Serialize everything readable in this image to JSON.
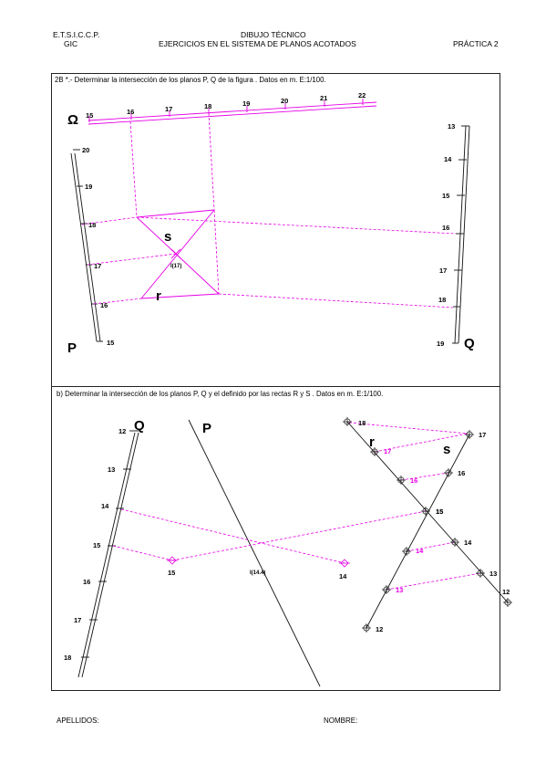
{
  "header": {
    "school": "E.T.S.I.C.C.P.",
    "group": "GIC",
    "subject": "DIBUJO TÉCNICO",
    "topic": "EJERCICIOS EN EL SISTEMA DE PLANOS ACOTADOS",
    "practice": "PRÁCTICA 2"
  },
  "exercise_a": {
    "statement": "2B *.- Determinar la intersección de los planos P, Q  de la figura . Datos en m. E:1/100.",
    "omega_label": "Ω",
    "omega_ticks": [
      "15",
      "16",
      "17",
      "18",
      "19",
      "20",
      "21",
      "22"
    ],
    "plane_p_label": "P",
    "plane_p_ticks": [
      "20",
      "19",
      "18",
      "17",
      "16",
      "15"
    ],
    "plane_q_label": "Q",
    "plane_q_ticks": [
      "13",
      "14",
      "15",
      "16",
      "17",
      "18",
      "19"
    ],
    "line_s": "s",
    "line_r": "r",
    "point_label": "I",
    "point_sub": "(17)"
  },
  "exercise_b": {
    "statement": "b)    Determinar la intersección de los planos P, Q y el definido por las rectas R y S . Datos en m. E:1/100.",
    "plane_q_label": "Q",
    "plane_q_ticks": [
      "12",
      "13",
      "14",
      "15",
      "16",
      "17",
      "18"
    ],
    "plane_p_label": "P",
    "point_15": "15",
    "point_14": "14",
    "intersection_label": "I(14.4)",
    "line_r_label": "r",
    "line_s_label": "s",
    "line_r_points": [
      "18",
      "17",
      "16",
      "15",
      "14",
      "13",
      "12"
    ],
    "line_s_points": [
      "17",
      "16",
      "15",
      "14",
      "13",
      "12"
    ]
  },
  "footer": {
    "surname": "APELLIDOS:",
    "name": "NOMBRE:"
  },
  "colors": {
    "construction": "#e600e6",
    "ink": "#111111"
  }
}
